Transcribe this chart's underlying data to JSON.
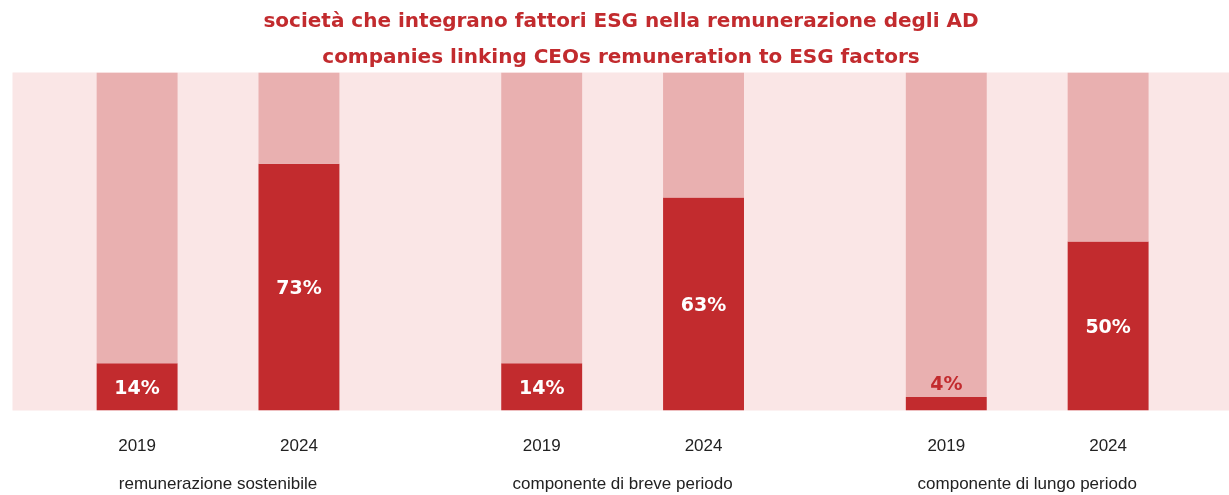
{
  "chart_data": {
    "type": "bar",
    "title": "società che integrano fattori ESG nella remunerazione degli AD",
    "subtitle": "companies linking CEOs remuneration to ESG factors",
    "categories": [
      "2019",
      "2024",
      "2019",
      "2024",
      "2019",
      "2024"
    ],
    "stacked": true,
    "grid": false,
    "series": [
      {
        "color": "#c22b2e",
        "values": [
          14,
          73,
          14,
          63,
          4,
          50
        ],
        "value_labels": [
          "14%",
          "73%",
          "14%",
          "63%",
          "4%",
          "50%"
        ]
      },
      {
        "color": "#e9b0b0",
        "values": [
          86,
          27,
          86,
          37,
          96,
          50
        ]
      }
    ],
    "annotations": [
      "remunerazione sostenibile",
      "componente di breve periodo",
      "componente di lungo periodo"
    ]
  }
}
